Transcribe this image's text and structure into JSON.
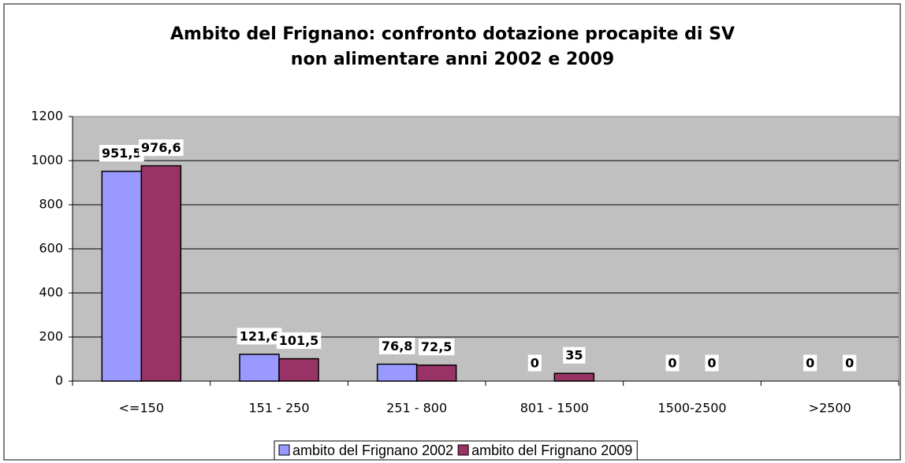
{
  "chart_data": {
    "type": "bar",
    "title": "Ambito del Frignano: confronto dotazione procapite di SV non alimentare anni 2002 e 2009",
    "categories": [
      "<=150",
      "151 - 250",
      "251 - 800",
      "801 - 1500",
      "1500-2500",
      ">2500"
    ],
    "series": [
      {
        "name": "ambito del Frignano 2002",
        "color": "#9999ff",
        "values": [
          951.5,
          121.6,
          76.8,
          0,
          0,
          0
        ],
        "value_labels": [
          "951,5",
          "121,6",
          "76,8",
          "0",
          "0",
          "0"
        ]
      },
      {
        "name": "ambito del Frignano 2009",
        "color": "#993366",
        "values": [
          976.6,
          101.5,
          72.5,
          35,
          0,
          0
        ],
        "value_labels": [
          "976,6",
          "101,5",
          "72,5",
          "35",
          "0",
          "0"
        ]
      }
    ],
    "ylim": [
      0,
      1200
    ],
    "yticks": [
      0,
      200,
      400,
      600,
      800,
      1000,
      1200
    ],
    "grid": true,
    "legend": "bottom"
  }
}
